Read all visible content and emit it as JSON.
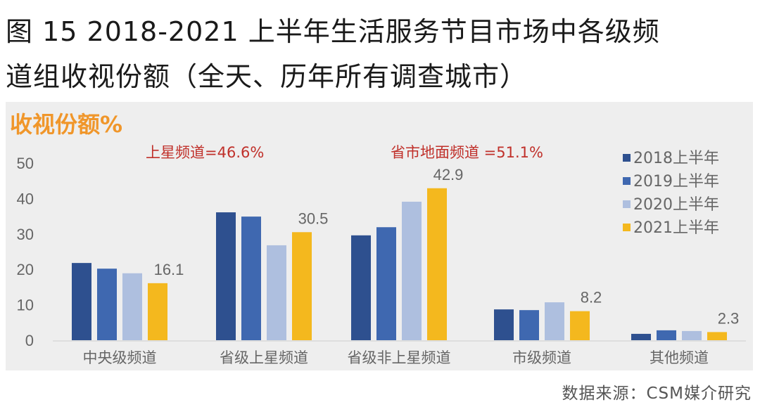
{
  "title_line1": "图 15 2018-2021 上半年生活服务节目市场中各级频",
  "title_line2": "道组收视份额（全天、历年所有调查城市）",
  "source": "数据来源：CSM媒介研究",
  "chart_data": {
    "type": "bar",
    "ylabel": "收视份额%",
    "ylim": [
      0,
      50
    ],
    "yticks": [
      0,
      10,
      20,
      30,
      40,
      50
    ],
    "grid": false,
    "legend_position": "right",
    "categories": [
      "中央级频道",
      "省级上星频道",
      "省级非上星频道",
      "市级频道",
      "其他频道"
    ],
    "series": [
      {
        "name": "2018上半年",
        "color": "#2e508f",
        "values": [
          21.8,
          36.1,
          29.6,
          8.7,
          1.8
        ]
      },
      {
        "name": "2019上半年",
        "color": "#3f68b0",
        "values": [
          20.2,
          34.9,
          31.9,
          8.5,
          2.8
        ]
      },
      {
        "name": "2020上半年",
        "color": "#aebfdf",
        "values": [
          18.9,
          26.8,
          39.1,
          10.7,
          2.6
        ]
      },
      {
        "name": "2021上半年",
        "color": "#f4b81e",
        "values": [
          16.1,
          30.5,
          42.9,
          8.2,
          2.3
        ]
      }
    ],
    "data_labels": [
      "16.1",
      "30.5",
      "42.9",
      "8.2",
      "2.3"
    ],
    "annotations": [
      "上星频道=46.6%",
      "省市地面频道 =51.1%"
    ]
  }
}
